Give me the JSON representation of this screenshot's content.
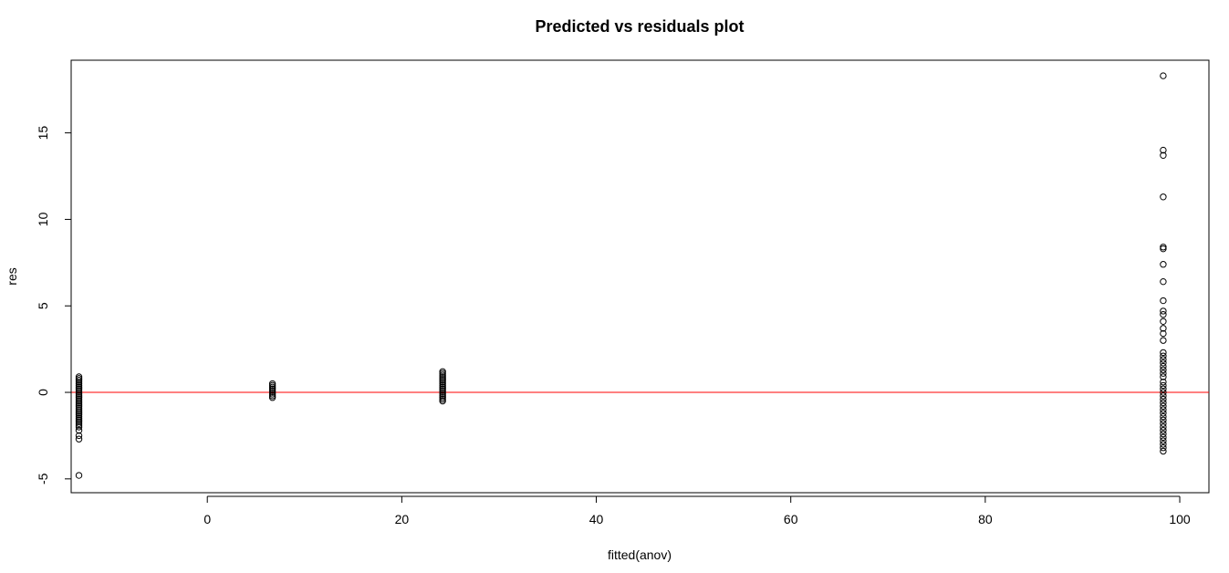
{
  "chart_data": {
    "type": "scatter",
    "title": "Predicted vs residuals plot",
    "xlabel": "fitted(anov)",
    "ylabel": "res",
    "xlim": [
      -14,
      103
    ],
    "ylim": [
      -5.8,
      19.2
    ],
    "x_ticks": [
      0,
      20,
      40,
      60,
      80,
      100
    ],
    "y_ticks": [
      -5,
      0,
      5,
      10,
      15
    ],
    "x_tick_labels": [
      "0",
      "20",
      "40",
      "60",
      "80",
      "100"
    ],
    "y_tick_labels": [
      "-5",
      "0",
      "5",
      "10",
      "15"
    ],
    "grid": false,
    "reference_line": {
      "y": 0,
      "color": "#ff0000"
    },
    "marker_color": "#000000",
    "points": {
      "groups": [
        {
          "x": -13.2,
          "y": [
            0.9,
            0.8,
            0.7,
            0.6,
            0.5,
            0.4,
            0.3,
            0.2,
            0.1,
            0.0,
            -0.1,
            -0.2,
            -0.3,
            -0.4,
            -0.5,
            -0.6,
            -0.7,
            -0.8,
            -0.9,
            -1.0,
            -1.1,
            -1.2,
            -1.3,
            -1.4,
            -1.5,
            -1.6,
            -1.7,
            -1.8,
            -1.9,
            -2.0,
            -2.2,
            -2.5,
            -2.7,
            -4.8
          ]
        },
        {
          "x": 6.7,
          "y": [
            0.5,
            0.4,
            0.3,
            0.2,
            0.1,
            0.0,
            -0.1,
            -0.2,
            -0.3
          ]
        },
        {
          "x": 24.2,
          "y": [
            1.2,
            1.1,
            1.0,
            0.9,
            0.8,
            0.7,
            0.6,
            0.5,
            0.4,
            0.3,
            0.2,
            0.1,
            0.0,
            -0.1,
            -0.2,
            -0.3,
            -0.4,
            -0.5
          ]
        },
        {
          "x": 98.3,
          "y": [
            18.3,
            14.0,
            13.7,
            11.3,
            8.4,
            8.3,
            7.4,
            6.4,
            5.3,
            4.7,
            4.5,
            4.1,
            3.7,
            3.4,
            3.0,
            2.3,
            2.1,
            1.9,
            1.7,
            1.5,
            1.3,
            1.1,
            0.9,
            0.6,
            0.4,
            0.2,
            0.0,
            -0.2,
            -0.4,
            -0.6,
            -0.8,
            -1.0,
            -1.2,
            -1.4,
            -1.6,
            -1.8,
            -2.0,
            -2.2,
            -2.4,
            -2.6,
            -2.8,
            -3.0,
            -3.2,
            -3.4
          ]
        }
      ]
    }
  }
}
